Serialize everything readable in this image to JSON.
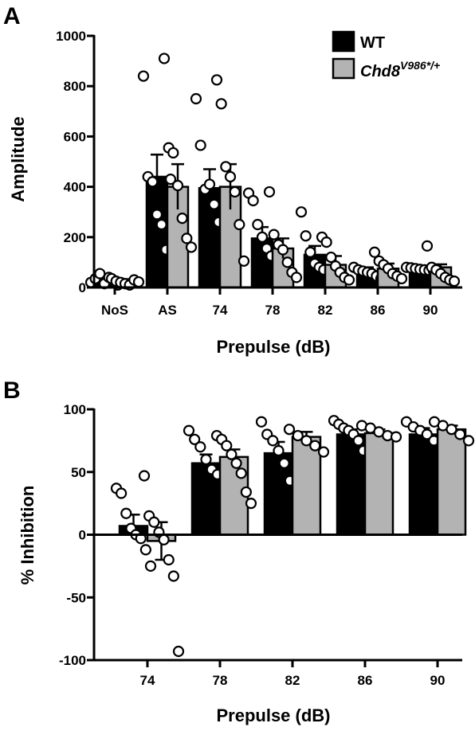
{
  "colors": {
    "wt": "#000000",
    "mut": "#b3b3b3",
    "point_fill": "#ffffff"
  },
  "legend": {
    "wt_label": "WT",
    "mut_base": "Chd8",
    "mut_sup": "V986*/+"
  },
  "chart_data": [
    {
      "panel": "A",
      "type": "bar",
      "xlabel": "Prepulse (dB)",
      "ylabel": "Amplitude",
      "ylim": [
        0,
        1000
      ],
      "yticks": [
        0,
        200,
        400,
        600,
        800,
        1000
      ],
      "categories": [
        "NoS",
        "AS",
        "74",
        "78",
        "82",
        "86",
        "90"
      ],
      "legend_position": "top-right",
      "series": [
        {
          "name": "WT",
          "color": "#000000",
          "values": [
            30,
            440,
            395,
            195,
            130,
            65,
            70
          ],
          "sem": [
            10,
            88,
            75,
            45,
            35,
            15,
            8
          ],
          "points": [
            [
              20,
              35,
              55,
              15,
              40,
              25,
              10
            ],
            [
              840,
              440,
              420,
              290,
              250,
              150,
              430
            ],
            [
              750,
              565,
              390,
              410,
              330,
              260,
              155
            ],
            [
              375,
              345,
              250,
              200,
              155,
              125,
              75
            ],
            [
              300,
              205,
              140,
              95,
              80,
              70,
              40
            ],
            [
              80,
              70,
              65,
              60,
              55,
              45,
              35
            ],
            [
              80,
              78,
              75,
              72,
              70,
              68,
              65
            ]
          ]
        },
        {
          "name": "Chd8 V986*/+",
          "color": "#b3b3b3",
          "values": [
            25,
            400,
            400,
            155,
            90,
            75,
            80
          ],
          "sem": [
            8,
            90,
            90,
            40,
            35,
            20,
            12
          ],
          "points": [
            [
              35,
              25,
              20,
              15,
              10,
              30,
              22
            ],
            [
              910,
              555,
              535,
              405,
              275,
              195,
              160
            ],
            [
              825,
              730,
              480,
              440,
              380,
              250,
              105
            ],
            [
              380,
              210,
              170,
              150,
              100,
              60,
              40
            ],
            [
              200,
              180,
              120,
              85,
              60,
              40,
              30
            ],
            [
              140,
              105,
              90,
              75,
              55,
              45,
              35
            ],
            [
              165,
              80,
              70,
              55,
              40,
              30,
              25
            ]
          ]
        }
      ]
    },
    {
      "panel": "B",
      "type": "bar",
      "xlabel": "Prepulse (dB)",
      "ylabel": "% Inhibition",
      "ylim": [
        -100,
        100
      ],
      "yticks": [
        -100,
        -50,
        0,
        50,
        100
      ],
      "categories": [
        "74",
        "78",
        "82",
        "86",
        "90"
      ],
      "series": [
        {
          "name": "WT",
          "color": "#000000",
          "values": [
            7,
            57,
            65,
            80,
            80
          ],
          "sem": [
            9,
            7,
            9,
            4,
            5
          ],
          "points": [
            [
              37,
              33,
              17,
              5,
              0,
              -3,
              -12,
              -25
            ],
            [
              83,
              76,
              70,
              60,
              52,
              48,
              17
            ],
            [
              90,
              80,
              75,
              67,
              57,
              43,
              37
            ],
            [
              91,
              88,
              85,
              83,
              80,
              75,
              67,
              57
            ],
            [
              90,
              86,
              83,
              80,
              75,
              45
            ]
          ]
        },
        {
          "name": "Chd8 V986*/+",
          "color": "#b3b3b3",
          "values": [
            -5,
            62,
            78,
            81,
            84
          ],
          "sem": [
            15,
            6,
            4,
            3,
            3
          ],
          "points": [
            [
              47,
              15,
              10,
              2,
              -4,
              -20,
              -33,
              -93
            ],
            [
              79,
              76,
              71,
              64,
              57,
              49,
              34,
              25
            ],
            [
              84,
              79,
              75,
              71,
              66
            ],
            [
              87,
              85,
              82,
              79,
              78
            ],
            [
              90,
              87,
              84,
              80,
              75
            ]
          ]
        }
      ]
    }
  ]
}
